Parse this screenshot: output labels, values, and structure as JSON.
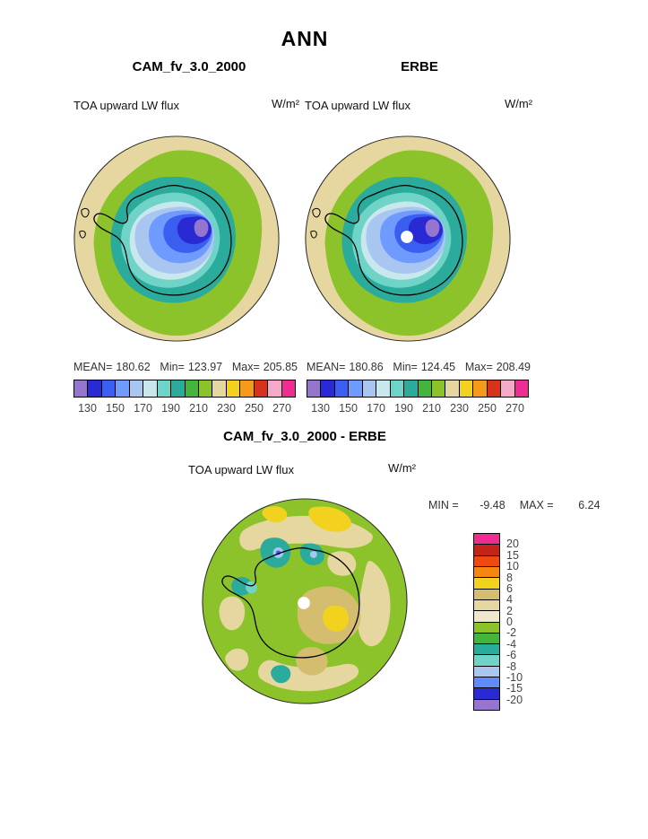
{
  "title": "ANN",
  "panels": {
    "cam": {
      "title": "CAM_fv_3.0_2000",
      "field_label": "TOA upward LW flux",
      "units": "W/m²",
      "stats": {
        "mean_label": "MEAN=",
        "mean": "180.62",
        "min_label": "Min=",
        "min": "123.97",
        "max_label": "Max=",
        "max": "205.85"
      }
    },
    "erbe": {
      "title": "ERBE",
      "field_label": "TOA upward LW flux",
      "units": "W/m²",
      "stats": {
        "mean_label": "MEAN=",
        "mean": "180.86",
        "min_label": "Min=",
        "min": "124.45",
        "max_label": "Max=",
        "max": "208.49"
      }
    },
    "diff": {
      "title": "CAM_fv_3.0_2000 - ERBE",
      "field_label": "TOA upward LW flux",
      "units": "W/m²",
      "minmax": {
        "min_label": "MIN =",
        "min": "-9.48",
        "max_label": "MAX =",
        "max": "6.24"
      }
    }
  },
  "flux_colorbar": {
    "colors": [
      "#9575cd",
      "#2a2ad4",
      "#3a5ff0",
      "#6f9bff",
      "#a9c6f0",
      "#c8e8ee",
      "#6fd3c8",
      "#2aab9b",
      "#44b53c",
      "#8cc32a",
      "#e6d7a0",
      "#f2d21e",
      "#f59a19",
      "#d6331c",
      "#f6a8c8",
      "#ee2c92"
    ],
    "ticks": [
      "130",
      "150",
      "170",
      "190",
      "210",
      "230",
      "250",
      "270"
    ]
  },
  "diff_colorbar": {
    "colors": [
      "#ee2c92",
      "#c42417",
      "#ef4911",
      "#f58611",
      "#f2d21e",
      "#d4bd6e",
      "#e6d7a0",
      "#f0e8cc",
      "#8cc32a",
      "#44b53c",
      "#2aab9b",
      "#6fd3c8",
      "#a9c6f0",
      "#5f8bff",
      "#2a2ad4",
      "#9575cd"
    ],
    "labels": [
      "20",
      "15",
      "10",
      "8",
      "6",
      "4",
      "2",
      "0",
      "-2",
      "-4",
      "-6",
      "-8",
      "-10",
      "-15",
      "-20"
    ]
  },
  "chart_data": [
    {
      "type": "heatmap",
      "subtype": "filled_contour_polar_map",
      "projection": "south polar stereographic (Antarctica)",
      "title": "CAM_fv_3.0_2000",
      "season": "ANN",
      "variable": "TOA upward LW flux",
      "units": "W/m²",
      "stats": {
        "mean": 180.62,
        "min": 123.97,
        "max": 205.85
      },
      "contour_levels": [
        130,
        140,
        150,
        160,
        170,
        180,
        190,
        200,
        210,
        220,
        230,
        240,
        250,
        260,
        270
      ],
      "tick_labels": [
        130,
        150,
        170,
        190,
        210,
        230,
        250,
        270
      ],
      "palette_low_to_high": [
        "#9575cd",
        "#2a2ad4",
        "#3a5ff0",
        "#6f9bff",
        "#a9c6f0",
        "#c8e8ee",
        "#6fd3c8",
        "#2aab9b",
        "#44b53c",
        "#8cc32a",
        "#e6d7a0",
        "#f2d21e",
        "#f59a19",
        "#d6331c",
        "#f6a8c8",
        "#ee2c92"
      ],
      "legend_position": "bottom",
      "pattern": "low flux (purple/blue, ~130 W/m²) over the East Antarctic plateau increasing outward through teal and green to tan (~200-210 W/m²) over the surrounding ocean"
    },
    {
      "type": "heatmap",
      "subtype": "filled_contour_polar_map",
      "projection": "south polar stereographic (Antarctica)",
      "title": "ERBE",
      "season": "ANN",
      "variable": "TOA upward LW flux",
      "units": "W/m²",
      "stats": {
        "mean": 180.86,
        "min": 124.45,
        "max": 208.49
      },
      "contour_levels": [
        130,
        140,
        150,
        160,
        170,
        180,
        190,
        200,
        210,
        220,
        230,
        240,
        250,
        260,
        270
      ],
      "tick_labels": [
        130,
        150,
        170,
        190,
        210,
        230,
        250,
        270
      ],
      "palette_low_to_high": [
        "#9575cd",
        "#2a2ad4",
        "#3a5ff0",
        "#6f9bff",
        "#a9c6f0",
        "#c8e8ee",
        "#6fd3c8",
        "#2aab9b",
        "#44b53c",
        "#8cc32a",
        "#e6d7a0",
        "#f2d21e",
        "#f59a19",
        "#d6331c",
        "#f6a8c8",
        "#ee2c92"
      ],
      "legend_position": "bottom",
      "notes": "white dot at pole = missing satellite data",
      "pattern": "same spatial pattern as model panel; low over plateau, higher over ocean"
    },
    {
      "type": "heatmap",
      "subtype": "filled_contour_polar_map_difference",
      "projection": "south polar stereographic (Antarctica)",
      "title": "CAM_fv_3.0_2000 - ERBE",
      "season": "ANN",
      "variable": "TOA upward LW flux",
      "units": "W/m²",
      "stats": {
        "min": -9.48,
        "max": 6.24
      },
      "contour_levels": [
        -20,
        -15,
        -10,
        -8,
        -6,
        -4,
        -2,
        0,
        2,
        4,
        6,
        8,
        10,
        15,
        20
      ],
      "palette_low_to_high": [
        "#9575cd",
        "#2a2ad4",
        "#5f8bff",
        "#a9c6f0",
        "#6fd3c8",
        "#2aab9b",
        "#44b53c",
        "#8cc32a",
        "#f0e8cc",
        "#e6d7a0",
        "#d4bd6e",
        "#f2d21e",
        "#f58611",
        "#ef4911",
        "#c42417",
        "#ee2c92"
      ],
      "legend_position": "right",
      "notes": "white dot at pole = missing data",
      "pattern": "mostly small differences (-2 to 0, green); scattered positive patches (tan/yellow, up to ~6) over continent interior and ocean; scattered negative patches (teal/blue, down to ~-9) near the peninsula and coast"
    }
  ]
}
